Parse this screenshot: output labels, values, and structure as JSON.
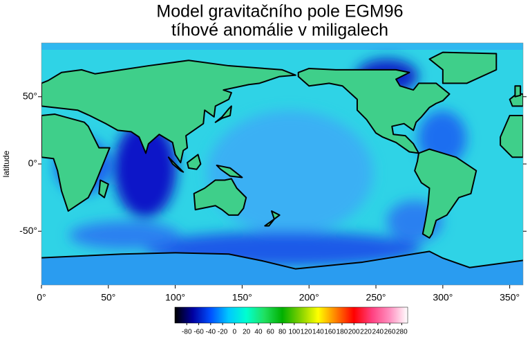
{
  "chart_data": {
    "type": "heatmap",
    "title": [
      "Model gravitačního pole EGM96",
      "tíhové anomálie v miligalech"
    ],
    "y_label": "latitude",
    "xlim": [
      0,
      360
    ],
    "ylim": [
      -90,
      90
    ],
    "xticks": [
      {
        "value": 0,
        "label": "0°"
      },
      {
        "value": 50,
        "label": "50°"
      },
      {
        "value": 100,
        "label": "100°"
      },
      {
        "value": 150,
        "label": "150°"
      },
      {
        "value": 200,
        "label": "200°"
      },
      {
        "value": 250,
        "label": "250°"
      },
      {
        "value": 300,
        "label": "300°"
      },
      {
        "value": 350,
        "label": "350°"
      }
    ],
    "yticks": [
      {
        "value": 50,
        "label": "50°"
      },
      {
        "value": 0,
        "label": "0°"
      },
      {
        "value": -50,
        "label": "-50°"
      }
    ],
    "colorbar": {
      "range": [
        -100,
        290
      ],
      "ticks": [
        -80,
        -60,
        -40,
        -20,
        0,
        20,
        40,
        60,
        80,
        100,
        120,
        140,
        160,
        180,
        200,
        220,
        240,
        260,
        280
      ],
      "colors": [
        "#000000",
        "#0000a0",
        "#0050ff",
        "#00c8ff",
        "#00ffd0",
        "#20e060",
        "#00b000",
        "#80d000",
        "#ffff00",
        "#ff8000",
        "#ff0000",
        "#ff4080",
        "#ff90c0",
        "#ffffff"
      ]
    }
  }
}
